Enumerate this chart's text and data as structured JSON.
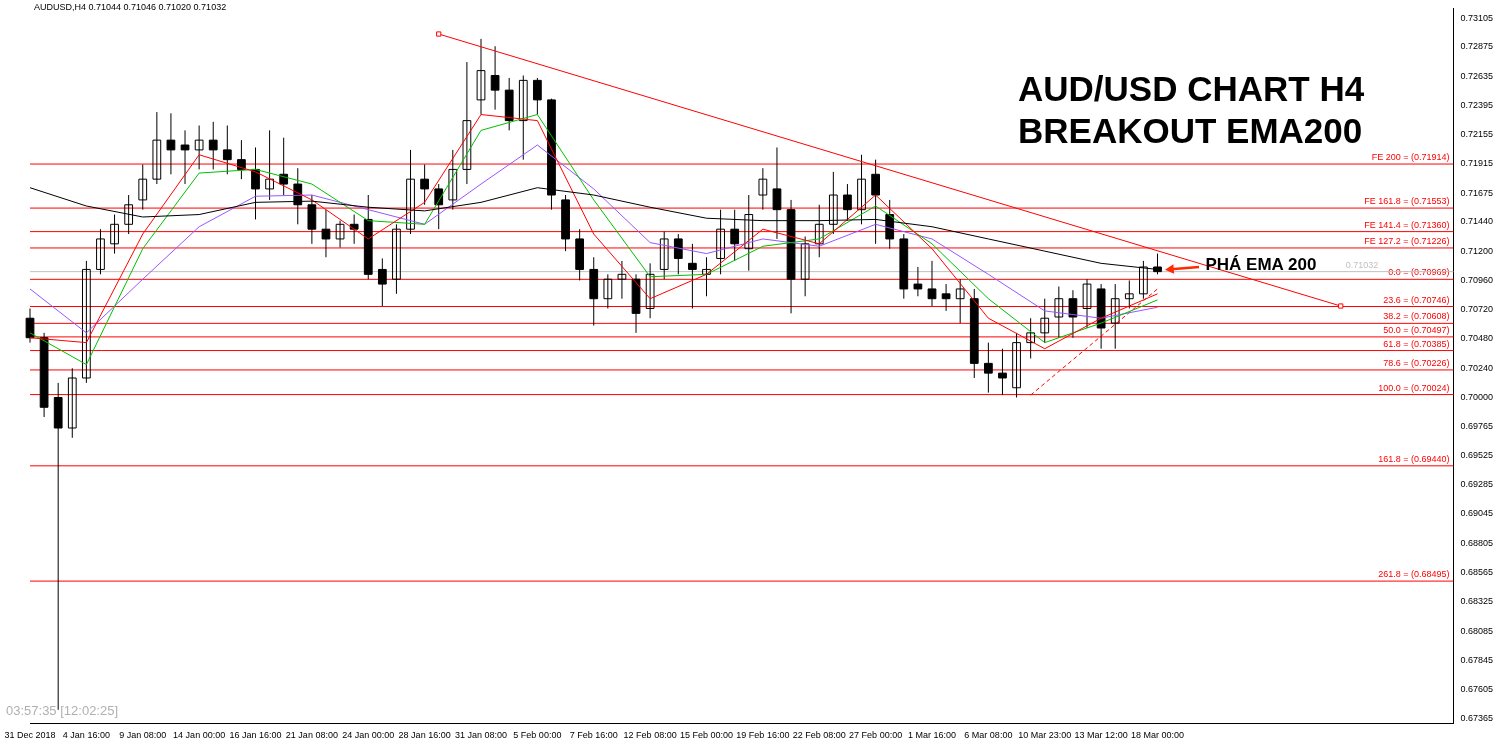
{
  "chart_data": {
    "type": "candlestick",
    "title": "AUD/USD CHART H4 BREAKOUT EMA200",
    "annotations": [
      "AUDUSD,H4  0.71044 0.71046 0.71020 0.71032",
      "03:57:35 [12:02:25]",
      {
        "text": "PHÁ EMA 200",
        "y": 0.7107
      }
    ],
    "categories": [
      "31 Dec 2018",
      null,
      null,
      null,
      "4 Jan 16:00",
      null,
      null,
      null,
      "9 Jan 08:00",
      null,
      null,
      null,
      "14 Jan 00:00",
      null,
      null,
      null,
      "16 Jan 16:00",
      null,
      null,
      null,
      "21 Jan 08:00",
      null,
      null,
      null,
      "24 Jan 00:00",
      null,
      null,
      null,
      "28 Jan 16:00",
      null,
      null,
      null,
      "31 Jan 08:00",
      null,
      null,
      null,
      "5 Feb 00:00",
      null,
      null,
      null,
      "7 Feb 16:00",
      null,
      null,
      null,
      "12 Feb 08:00",
      null,
      null,
      null,
      "15 Feb 00:00",
      null,
      null,
      null,
      "19 Feb 16:00",
      null,
      null,
      null,
      "22 Feb 08:00",
      null,
      null,
      null,
      "27 Feb 00:00",
      null,
      null,
      null,
      "1 Mar 16:00",
      null,
      null,
      null,
      "6 Mar 08:00",
      null,
      null,
      null,
      "10 Mar 23:00",
      null,
      null,
      null,
      "13 Mar 12:00",
      null,
      null,
      null,
      "18 Mar 00:00",
      null,
      null,
      null,
      null,
      null,
      null,
      null,
      null,
      null,
      null,
      null,
      null,
      null,
      null,
      null,
      null,
      null,
      null,
      null,
      null,
      null
    ],
    "color": "#000000",
    "ohlc": [
      [
        0.7065,
        0.7073,
        0.7045,
        0.7049
      ],
      [
        0.7049,
        0.7053,
        0.6984,
        0.6992
      ],
      [
        0.7,
        0.7012,
        0.6744,
        0.6975
      ],
      [
        0.6975,
        0.7024,
        0.6967,
        0.7016
      ],
      [
        0.7016,
        0.7112,
        0.7012,
        0.7105
      ],
      [
        0.7105,
        0.7138,
        0.7101,
        0.713
      ],
      [
        0.7126,
        0.715,
        0.7118,
        0.7142
      ],
      [
        0.7142,
        0.7166,
        0.7134,
        0.7158
      ],
      [
        0.7162,
        0.7191,
        0.7154,
        0.7179
      ],
      [
        0.7179,
        0.7234,
        0.7175,
        0.7211
      ],
      [
        0.7211,
        0.7233,
        0.7183,
        0.7203
      ],
      [
        0.7207,
        0.7219,
        0.7175,
        0.7203
      ],
      [
        0.7203,
        0.7223,
        0.7187,
        0.7211
      ],
      [
        0.7211,
        0.7226,
        0.7187,
        0.7203
      ],
      [
        0.7203,
        0.7223,
        0.7183,
        0.7195
      ],
      [
        0.7195,
        0.7211,
        0.7179,
        0.7187
      ],
      [
        0.7187,
        0.7205,
        0.7146,
        0.7171
      ],
      [
        0.7171,
        0.7219,
        0.7162,
        0.7179
      ],
      [
        0.7183,
        0.7213,
        0.7166,
        0.7175
      ],
      [
        0.7175,
        0.7188,
        0.7142,
        0.7158
      ],
      [
        0.7158,
        0.7166,
        0.7126,
        0.7138
      ],
      [
        0.7138,
        0.7154,
        0.7115,
        0.713
      ],
      [
        0.713,
        0.7145,
        0.7123,
        0.7142
      ],
      [
        0.7142,
        0.715,
        0.7126,
        0.7138
      ],
      [
        0.7146,
        0.7166,
        0.7097,
        0.7101
      ],
      [
        0.7105,
        0.7114,
        0.7075,
        0.7093
      ],
      [
        0.7097,
        0.7142,
        0.7085,
        0.7138
      ],
      [
        0.7138,
        0.7203,
        0.7134,
        0.7179
      ],
      [
        0.7179,
        0.7191,
        0.7158,
        0.7171
      ],
      [
        0.7171,
        0.7175,
        0.7138,
        0.7158
      ],
      [
        0.7162,
        0.7203,
        0.7154,
        0.7187
      ],
      [
        0.7187,
        0.7275,
        0.7175,
        0.7227
      ],
      [
        0.7244,
        0.7294,
        0.7232,
        0.7268
      ],
      [
        0.7264,
        0.7288,
        0.7236,
        0.7252
      ],
      [
        0.7252,
        0.7262,
        0.7219,
        0.7227
      ],
      [
        0.7227,
        0.7264,
        0.7195,
        0.726
      ],
      [
        0.726,
        0.7262,
        0.7232,
        0.7244
      ],
      [
        0.7244,
        0.7245,
        0.7154,
        0.7166
      ],
      [
        0.7162,
        0.7166,
        0.712,
        0.713
      ],
      [
        0.713,
        0.7138,
        0.7096,
        0.7105
      ],
      [
        0.7105,
        0.7115,
        0.7059,
        0.7081
      ],
      [
        0.7081,
        0.7101,
        0.7073,
        0.7097
      ],
      [
        0.7097,
        0.7112,
        0.7081,
        0.7101
      ],
      [
        0.7097,
        0.7101,
        0.7053,
        0.7069
      ],
      [
        0.7073,
        0.711,
        0.7065,
        0.7101
      ],
      [
        0.7105,
        0.7136,
        0.7097,
        0.713
      ],
      [
        0.713,
        0.7134,
        0.7101,
        0.7114
      ],
      [
        0.711,
        0.7126,
        0.7073,
        0.7105
      ],
      [
        0.7101,
        0.7115,
        0.7083,
        0.7105
      ],
      [
        0.7114,
        0.7154,
        0.7101,
        0.7138
      ],
      [
        0.7138,
        0.7154,
        0.7112,
        0.7126
      ],
      [
        0.7122,
        0.7166,
        0.7104,
        0.715
      ],
      [
        0.7166,
        0.7188,
        0.7154,
        0.7179
      ],
      [
        0.7171,
        0.7205,
        0.713,
        0.7154
      ],
      [
        0.7154,
        0.7162,
        0.7069,
        0.7097
      ],
      [
        0.7097,
        0.7132,
        0.7083,
        0.7126
      ],
      [
        0.7126,
        0.7158,
        0.7115,
        0.7142
      ],
      [
        0.7142,
        0.7185,
        0.7134,
        0.7166
      ],
      [
        0.7166,
        0.7175,
        0.7145,
        0.7154
      ],
      [
        0.7154,
        0.7199,
        0.7142,
        0.7179
      ],
      [
        0.7183,
        0.7195,
        0.7126,
        0.7166
      ],
      [
        0.715,
        0.7162,
        0.7122,
        0.713
      ],
      [
        0.713,
        0.7134,
        0.7081,
        0.7089
      ],
      [
        0.7093,
        0.7107,
        0.7083,
        0.7089
      ],
      [
        0.7089,
        0.7112,
        0.7075,
        0.7081
      ],
      [
        0.7085,
        0.7093,
        0.7071,
        0.7081
      ],
      [
        0.7081,
        0.7097,
        0.7061,
        0.7089
      ],
      [
        0.7081,
        0.7089,
        0.7016,
        0.7028
      ],
      [
        0.7028,
        0.7045,
        0.7004,
        0.702
      ],
      [
        0.702,
        0.704,
        0.7002,
        0.7016
      ],
      [
        0.7008,
        0.7053,
        0.7,
        0.7045
      ],
      [
        0.7045,
        0.7065,
        0.7032,
        0.7053
      ],
      [
        0.7053,
        0.7081,
        0.7045,
        0.7065
      ],
      [
        0.7066,
        0.7091,
        0.7049,
        0.7081
      ],
      [
        0.7081,
        0.7088,
        0.7049,
        0.7066
      ],
      [
        0.7073,
        0.7097,
        0.7057,
        0.7093
      ],
      [
        0.7089,
        0.7093,
        0.704,
        0.7057
      ],
      [
        0.7061,
        0.7093,
        0.704,
        0.7081
      ],
      [
        0.7081,
        0.7096,
        0.7073,
        0.7085
      ],
      [
        0.7085,
        0.7112,
        0.7081,
        0.7107
      ],
      [
        0.7107,
        0.7118,
        0.7101,
        0.71032
      ],
      null,
      null,
      null,
      null,
      null,
      null,
      null,
      null,
      null,
      null,
      null,
      null,
      null,
      null,
      null,
      null,
      null,
      null,
      null,
      null,
      null
    ],
    "marker": "none",
    "series": [
      {
        "type": "line",
        "color": "#000000",
        "values": [
          0.7172,
          null,
          null,
          null,
          0.7157,
          null,
          null,
          null,
          0.7148,
          null,
          null,
          null,
          0.715,
          null,
          null,
          null,
          0.716,
          null,
          null,
          null,
          0.7161,
          null,
          null,
          null,
          0.7156,
          null,
          null,
          null,
          0.7153,
          null,
          null,
          null,
          0.716,
          null,
          null,
          null,
          0.7172,
          null,
          null,
          null,
          0.7166,
          null,
          null,
          null,
          0.7156,
          null,
          null,
          null,
          0.7147,
          null,
          null,
          null,
          0.7145,
          null,
          null,
          null,
          0.7145,
          null,
          null,
          null,
          0.7146,
          null,
          null,
          null,
          0.714,
          null,
          null,
          null,
          0.713,
          null,
          null,
          null,
          0.712,
          null,
          null,
          null,
          0.711,
          null,
          null,
          null,
          0.7105,
          null,
          null,
          null,
          null,
          null,
          null,
          null,
          null,
          null,
          null,
          null,
          null,
          null,
          null,
          null,
          null,
          null,
          null,
          null,
          null,
          null
        ]
      },
      {
        "type": "line",
        "color": "#ff0000",
        "values": [
          0.7049,
          null,
          null,
          null,
          0.7045,
          null,
          null,
          null,
          0.7134,
          null,
          null,
          null,
          0.7199,
          null,
          null,
          null,
          0.7185,
          null,
          null,
          null,
          0.7162,
          null,
          null,
          null,
          0.713,
          null,
          null,
          null,
          0.716,
          null,
          null,
          null,
          0.7232,
          null,
          null,
          null,
          0.7227,
          null,
          null,
          null,
          0.7134,
          null,
          null,
          null,
          0.7081,
          null,
          null,
          null,
          0.7101,
          null,
          null,
          null,
          0.7138,
          null,
          null,
          null,
          0.7126,
          null,
          null,
          null,
          0.7166,
          null,
          null,
          null,
          0.7122,
          null,
          null,
          null,
          0.7065,
          null,
          null,
          null,
          0.704,
          null,
          null,
          null,
          0.7065,
          null,
          null,
          null,
          0.7085,
          null,
          null,
          null,
          null,
          null,
          null,
          null,
          null,
          null,
          null,
          null,
          null,
          null,
          null,
          null,
          null,
          null,
          null,
          null,
          null,
          null
        ]
      },
      {
        "type": "line",
        "color": "#00c000",
        "values": [
          0.7053,
          null,
          null,
          null,
          0.7027,
          null,
          null,
          null,
          0.7122,
          null,
          null,
          null,
          0.7184,
          null,
          null,
          null,
          0.7187,
          null,
          null,
          null,
          0.7175,
          null,
          null,
          null,
          0.7145,
          null,
          null,
          null,
          0.7142,
          null,
          null,
          null,
          0.7219,
          null,
          null,
          null,
          0.7232,
          null,
          null,
          null,
          0.7162,
          null,
          null,
          null,
          0.7099,
          null,
          null,
          null,
          0.7101,
          null,
          null,
          null,
          0.7124,
          null,
          null,
          null,
          0.713,
          null,
          null,
          null,
          0.7157,
          null,
          null,
          null,
          0.7126,
          null,
          null,
          null,
          0.7081,
          null,
          null,
          null,
          0.7045,
          null,
          null,
          null,
          0.7061,
          null,
          null,
          null,
          0.708,
          null,
          null,
          null,
          null,
          null,
          null,
          null,
          null,
          null,
          null,
          null,
          null,
          null,
          null,
          null,
          null,
          null,
          null,
          null,
          null,
          null
        ]
      },
      {
        "type": "line",
        "color": "#9955ff",
        "values": [
          0.7089,
          null,
          null,
          null,
          0.7053,
          null,
          null,
          null,
          0.7097,
          null,
          null,
          null,
          0.714,
          null,
          null,
          null,
          0.7165,
          null,
          null,
          null,
          0.7166,
          null,
          null,
          null,
          0.7154,
          null,
          null,
          null,
          0.7142,
          null,
          null,
          null,
          0.7175,
          null,
          null,
          null,
          0.7207,
          null,
          null,
          null,
          0.7171,
          null,
          null,
          null,
          0.7127,
          null,
          null,
          null,
          0.7118,
          null,
          null,
          null,
          0.713,
          null,
          null,
          null,
          0.7124,
          null,
          null,
          null,
          0.7142,
          null,
          null,
          null,
          0.713,
          null,
          null,
          null,
          0.7101,
          null,
          null,
          null,
          0.7071,
          null,
          null,
          null,
          0.7065,
          null,
          null,
          null,
          0.7074,
          null,
          null,
          null,
          null,
          null,
          null,
          null,
          null,
          null,
          null,
          null,
          null,
          null,
          null,
          null,
          null,
          null,
          null,
          null,
          null,
          null
        ]
      },
      {
        "type": "line",
        "color": "#ff0000",
        "marker": "square",
        "values": [
          null,
          null,
          null,
          null,
          null,
          null,
          null,
          null,
          null,
          null,
          null,
          null,
          null,
          null,
          null,
          null,
          null,
          null,
          null,
          null,
          null,
          null,
          null,
          null,
          null,
          null,
          null,
          null,
          null,
          0.7298,
          null,
          null,
          null,
          null,
          null,
          null,
          null,
          null,
          null,
          null,
          null,
          null,
          null,
          null,
          null,
          null,
          null,
          null,
          null,
          null,
          null,
          null,
          null,
          null,
          null,
          null,
          null,
          null,
          null,
          null,
          null,
          null,
          null,
          null,
          null,
          null,
          null,
          null,
          null,
          null,
          null,
          null,
          null,
          null,
          null,
          null,
          null,
          null,
          null,
          null,
          null,
          null,
          null,
          null,
          null,
          null,
          null,
          null,
          null,
          null,
          null,
          null,
          null,
          0.7075,
          null,
          null,
          null,
          null,
          null,
          null,
          null,
          null
        ]
      },
      {
        "type": "line",
        "color": "#ff0000",
        "line_style": "dashed",
        "values": [
          null,
          null,
          null,
          null,
          null,
          null,
          null,
          null,
          null,
          null,
          null,
          null,
          null,
          null,
          null,
          null,
          null,
          null,
          null,
          null,
          null,
          null,
          null,
          null,
          null,
          null,
          null,
          null,
          null,
          null,
          null,
          null,
          null,
          null,
          null,
          null,
          null,
          null,
          null,
          null,
          null,
          null,
          null,
          null,
          null,
          null,
          null,
          null,
          null,
          null,
          null,
          null,
          null,
          null,
          null,
          null,
          null,
          null,
          null,
          null,
          null,
          null,
          null,
          null,
          null,
          null,
          null,
          null,
          null,
          null,
          null,
          0.7002,
          null,
          null,
          null,
          null,
          null,
          null,
          null,
          null,
          0.7089,
          null,
          null,
          null,
          null,
          null,
          null,
          null,
          null,
          null,
          null,
          null,
          null,
          null,
          null,
          null,
          null,
          null,
          null,
          null,
          null,
          null
        ]
      }
    ],
    "ref_lines": [
      {
        "axis": "y",
        "value": 0.71914,
        "label": "FE 200 = (0.71914)",
        "color": "#ff0000"
      },
      {
        "axis": "y",
        "value": 0.71553,
        "label": "FE 161.8 = (0.71553)",
        "color": "#ff0000"
      },
      {
        "axis": "y",
        "value": 0.7136,
        "label": "FE 141.4 = (0.71360)",
        "color": "#ff0000"
      },
      {
        "axis": "y",
        "value": 0.71226,
        "label": "FE 127.2 = (0.71226)",
        "color": "#ff0000"
      },
      {
        "axis": "y",
        "value": 0.70969,
        "label": "0.0 = (0.70969)",
        "color": "#ff0000"
      },
      {
        "axis": "y",
        "value": 0.70746,
        "label": "23.6 = (0.70746)",
        "color": "#ff0000"
      },
      {
        "axis": "y",
        "value": 0.70608,
        "label": "38.2 = (0.70608)",
        "color": "#ff0000"
      },
      {
        "axis": "y",
        "value": 0.70497,
        "label": "50.0 = (0.70497)",
        "color": "#ff0000"
      },
      {
        "axis": "y",
        "value": 0.70385,
        "label": "61.8 = (0.70385)",
        "color": "#ff0000"
      },
      {
        "axis": "y",
        "value": 0.70226,
        "label": "78.6 = (0.70226)",
        "color": "#ff0000"
      },
      {
        "axis": "y",
        "value": 0.70024,
        "label": "100.0 = (0.70024)",
        "color": "#ff0000"
      },
      {
        "axis": "y",
        "value": 0.6944,
        "label": "161.8 = (0.69440)",
        "color": "#ff0000"
      },
      {
        "axis": "y",
        "value": 0.68495,
        "label": "261.8 = (0.68495)",
        "color": "#ff0000"
      },
      {
        "axis": "y",
        "value": 0.71032,
        "label": "0.71032",
        "color": "#c0c0c0"
      }
    ],
    "ylim": [
      0.6733,
      0.7319
    ],
    "yticks": [
      0.67365,
      0.67605,
      0.67845,
      0.68085,
      0.68325,
      0.68565,
      0.68805,
      0.69045,
      0.69285,
      0.69525,
      0.69765,
      {
        "value": 0.7,
        "label": "0.70000"
      },
      {
        "value": 0.7024,
        "label": "0.70240"
      },
      {
        "value": 0.7048,
        "label": "0.70480"
      },
      {
        "value": 0.7072,
        "label": "0.70720"
      },
      {
        "value": 0.7096,
        "label": "0.70960"
      },
      {
        "value": 0.712,
        "label": "0.71200"
      },
      {
        "value": 0.7144,
        "label": "0.71440"
      },
      0.71675,
      0.71915,
      0.72155,
      0.72395,
      0.72635,
      0.72875,
      0.73105
    ],
    "grid": false,
    "legend": false
  }
}
